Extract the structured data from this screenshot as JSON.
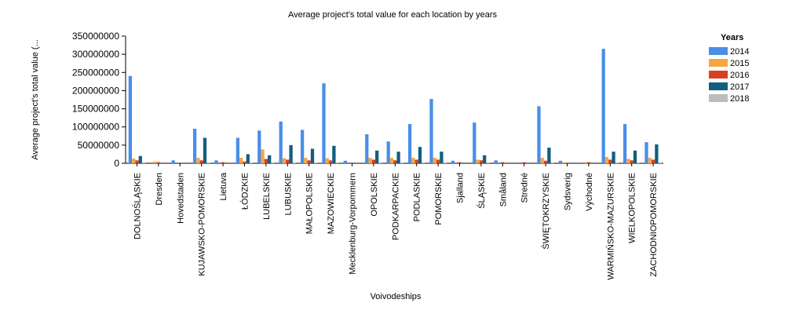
{
  "chart_data": {
    "type": "bar",
    "title": "Average project's total value for each location by years",
    "xlabel": "Voivodeships",
    "ylabel": "Average project's total value (...",
    "ylim": [
      0,
      350000000
    ],
    "yticks": [
      0,
      50000000,
      100000000,
      150000000,
      200000000,
      250000000,
      300000000,
      350000000
    ],
    "ytick_labels": [
      "0",
      "50000000",
      "100000000",
      "150000000",
      "200000000",
      "250000000",
      "300000000",
      "350000000"
    ],
    "grid": false,
    "legend_title": "Years",
    "legend_position": "top-right",
    "categories": [
      "DOLNOŚLĄSKIE",
      "Dresden",
      "Hovedstaden",
      "KUJAWSKO-POMORSKIE",
      "Lietuva",
      "ŁÓDZKIE",
      "LUBELSKIE",
      "LUBUSKIE",
      "MAŁOPOLSKIE",
      "MAZOWIECKIE",
      "Mecklenburg-Vorpommern",
      "OPOLSKIE",
      "PODKARPACKIE",
      "PODLASKIE",
      "POMORSKIE",
      "Sjalland",
      "ŚLĄSKIE",
      "Småland",
      "Stredné",
      "ŚWIĘTOKRZYSKIE",
      "Sydsverig",
      "Východné",
      "WARMIŃSKO-MAZURSKIE",
      "WIELKOPOLSKIE",
      "ZACHODNIOPOMORSKIE"
    ],
    "series": [
      {
        "name": "2014",
        "color": "#4a8ee8",
        "values": [
          240000000,
          0,
          8000000,
          95000000,
          8000000,
          70000000,
          90000000,
          115000000,
          92000000,
          220000000,
          7000000,
          80000000,
          60000000,
          108000000,
          177000000,
          7000000,
          112000000,
          8000000,
          0,
          157000000,
          7000000,
          0,
          315000000,
          108000000,
          58000000
        ]
      },
      {
        "name": "2015",
        "color": "#f5a742",
        "values": [
          13000000,
          5000000,
          0,
          15000000,
          0,
          15000000,
          38000000,
          14000000,
          15000000,
          14000000,
          0,
          15000000,
          15000000,
          15000000,
          15000000,
          0,
          10000000,
          0,
          0,
          15000000,
          3000000,
          3000000,
          17000000,
          12000000,
          15000000
        ]
      },
      {
        "name": "2016",
        "color": "#d9401e",
        "values": [
          8000000,
          3000000,
          0,
          8000000,
          3000000,
          5000000,
          12000000,
          10000000,
          8000000,
          8000000,
          0,
          10000000,
          8000000,
          10000000,
          10000000,
          3000000,
          8000000,
          3000000,
          3000000,
          7000000,
          0,
          3000000,
          10000000,
          8000000,
          10000000
        ]
      },
      {
        "name": "2017",
        "color": "#135e7e",
        "values": [
          20000000,
          0,
          0,
          70000000,
          0,
          25000000,
          22000000,
          50000000,
          40000000,
          48000000,
          0,
          35000000,
          32000000,
          45000000,
          32000000,
          0,
          22000000,
          0,
          0,
          43000000,
          0,
          0,
          32000000,
          35000000,
          52000000
        ]
      },
      {
        "name": "2018",
        "color": "#bdbdbd",
        "values": [
          2000000,
          0,
          0,
          2000000,
          0,
          2000000,
          2000000,
          2000000,
          2000000,
          2000000,
          0,
          2000000,
          2000000,
          2000000,
          2000000,
          0,
          2000000,
          0,
          0,
          2000000,
          0,
          0,
          2000000,
          2000000,
          2000000
        ]
      }
    ]
  }
}
